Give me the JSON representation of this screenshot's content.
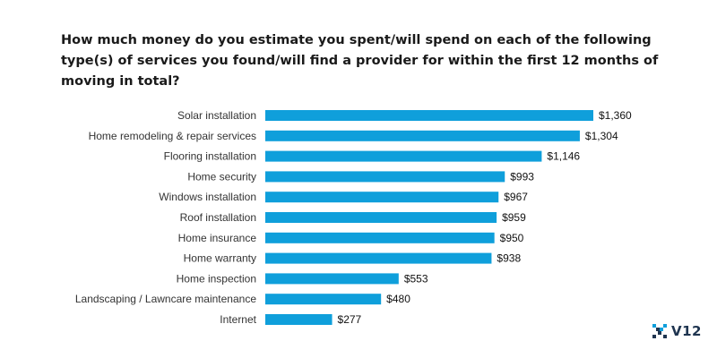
{
  "chart_data": {
    "type": "bar",
    "orientation": "horizontal",
    "title": "How much money do you estimate you spent/will spend on each of the following type(s) of services you found/will find a provider for within the first 12 months of moving in total?",
    "categories": [
      "Solar installation",
      "Home remodeling & repair services",
      "Flooring installation",
      "Home security",
      "Windows installation",
      "Roof installation",
      "Home insurance",
      "Home warranty",
      "Home inspection",
      "Landscaping / Lawncare maintenance",
      "Internet"
    ],
    "values": [
      1360,
      1304,
      1146,
      993,
      967,
      959,
      950,
      938,
      553,
      480,
      277
    ],
    "value_labels": [
      "$1,360",
      "$1,304",
      "$1,146",
      "$993",
      "$967",
      "$959",
      "$950",
      "$938",
      "$553",
      "$480",
      "$277"
    ],
    "xlabel": "",
    "ylabel": "",
    "xlim": [
      0,
      1360
    ],
    "grid": false,
    "legend": "none",
    "bar_color": "#0f9fdb"
  },
  "brand": {
    "name": "V12",
    "icon": "v12-logo-icon",
    "color": "#1f3550",
    "accent": "#0f9fdb"
  }
}
